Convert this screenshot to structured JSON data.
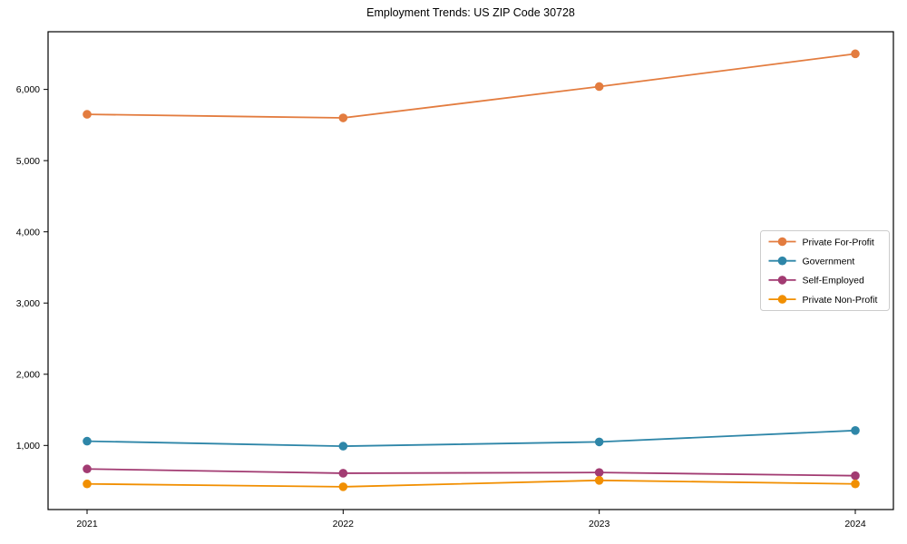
{
  "figure": {
    "background": "#ffffff"
  },
  "chart_data": {
    "type": "line",
    "title": "Employment Trends: US ZIP Code 30728",
    "xlabel": "",
    "ylabel": "",
    "x_categories": [
      "2021",
      "2022",
      "2023",
      "2024"
    ],
    "y_ticks": [
      1000,
      2000,
      3000,
      4000,
      5000,
      6000
    ],
    "y_tick_labels": [
      "1,000",
      "2,000",
      "3,000",
      "4,000",
      "5,000",
      "6,000"
    ],
    "ylim": [
      100,
      6810
    ],
    "grid": false,
    "legend_position": "right-middle",
    "marker": "circle",
    "axis_color": "#000000",
    "legend_border_color": "#cccccc",
    "series": [
      {
        "name": "Private For-Profit",
        "color": "#E37C3F",
        "values": [
          5650,
          5600,
          6040,
          6500
        ]
      },
      {
        "name": "Government",
        "color": "#2E86A8",
        "values": [
          1060,
          990,
          1050,
          1210
        ]
      },
      {
        "name": "Self-Employed",
        "color": "#A23B72",
        "values": [
          670,
          610,
          620,
          575
        ]
      },
      {
        "name": "Private Non-Profit",
        "color": "#F18F01",
        "values": [
          460,
          420,
          510,
          460
        ]
      }
    ]
  }
}
